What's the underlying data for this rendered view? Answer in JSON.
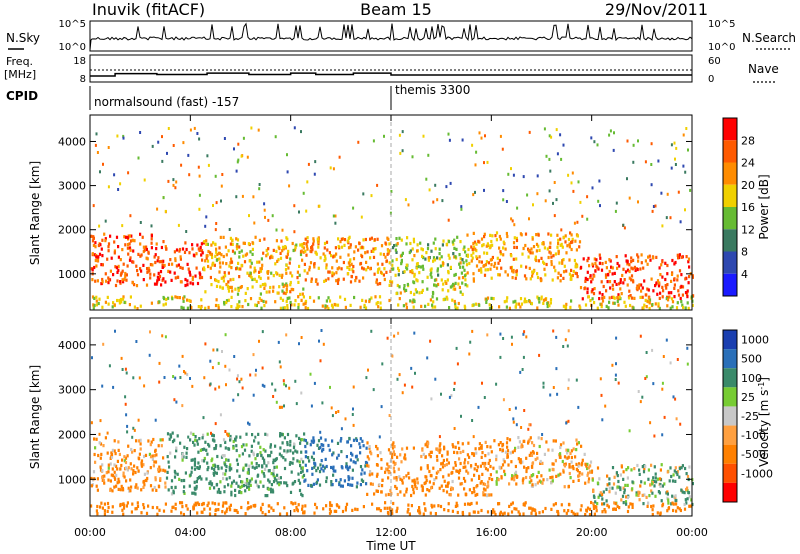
{
  "header": {
    "station": "Inuvik  (fitACF)",
    "beam": "Beam 15",
    "date": "29/Nov/2011"
  },
  "noise_panel": {
    "left_label": "N.Sky",
    "right_label": "N.Search",
    "left_ticks": [
      "10^5",
      "10^0"
    ],
    "right_ticks": [
      "10^5",
      "10^0"
    ]
  },
  "freq_panel": {
    "left_label_1": "Freq.",
    "left_label_2": "[MHz]",
    "right_label": "Nave",
    "left_ticks": [
      "18",
      "8"
    ],
    "right_ticks": [
      "60",
      "0"
    ]
  },
  "cpid_panel": {
    "label": "CPID",
    "segments": [
      "normalsound (fast) -157",
      "themis 3300"
    ]
  },
  "xaxis": {
    "label": "Time UT",
    "ticks": [
      "00:00",
      "04:00",
      "08:00",
      "12:00",
      "16:00",
      "20:00",
      "00:00"
    ]
  },
  "yaxis": {
    "label": "Slant Range [km]",
    "ticks": [
      "1000",
      "2000",
      "3000",
      "4000"
    ]
  },
  "power_colorbar": {
    "label": "Power [dB]",
    "ticks": [
      "4",
      "8",
      "12",
      "16",
      "20",
      "24",
      "28"
    ],
    "colors": [
      "#1a1aff",
      "#2e48b0",
      "#3a7a60",
      "#66bb33",
      "#f0d000",
      "#ff8c00",
      "#ff5a00",
      "#ff0000"
    ]
  },
  "velocity_colorbar": {
    "label": "Velocity [m s^-1]",
    "ticks": [
      "1000",
      "500",
      "100",
      "25",
      "-25",
      "-100",
      "-500",
      "-1000"
    ],
    "colors": [
      "#1a3fb0",
      "#2a6fb8",
      "#3a8a6a",
      "#77cc33",
      "#c8c8c8",
      "#ffa040",
      "#ff8000",
      "#ff5000",
      "#ff0000"
    ]
  },
  "chart_data": [
    {
      "type": "line",
      "title": "N.Sky / N.Search",
      "ylabel": "N.Sky",
      "x_range": [
        "00:00",
        "24:00"
      ],
      "series": [
        {
          "name": "N.Sky"
        },
        {
          "name": "N.Search"
        }
      ]
    },
    {
      "type": "line",
      "title": "Freq. / Nave",
      "ylabel": "Freq. [MHz]",
      "ylim": [
        8,
        18
      ],
      "series": [
        {
          "name": "Freq.",
          "x": [
            "00:00",
            "01:00",
            "02:40",
            "04:40",
            "06:20",
            "08:00",
            "09:00",
            "10:30",
            "12:00",
            "24:00"
          ],
          "values": [
            10.2,
            11.1,
            10.8,
            11.3,
            10.8,
            11.3,
            10.8,
            11.3,
            10.6,
            10.6
          ]
        }
      ]
    },
    {
      "type": "table",
      "title": "CPID",
      "x": [
        "00:00",
        "12:00"
      ],
      "values": [
        "normalsound (fast) -157",
        "themis 3300"
      ]
    },
    {
      "type": "heatmap",
      "title": "Power [dB]",
      "xlabel": "Time UT",
      "ylabel": "Slant Range [km]",
      "xlim": [
        "00:00",
        "24:00"
      ],
      "ylim": [
        180,
        4600
      ],
      "colorbar": {
        "label": "Power [dB]",
        "ticks": [
          4,
          8,
          12,
          16,
          20,
          24,
          28
        ]
      },
      "regions": [
        {
          "t": [
            0.0,
            2.5
          ],
          "r": [
            700,
            1900
          ],
          "power": 26
        },
        {
          "t": [
            2.5,
            4.5
          ],
          "r": [
            700,
            1700
          ],
          "power": 28
        },
        {
          "t": [
            4.5,
            8.5
          ],
          "r": [
            500,
            1800
          ],
          "power": 20
        },
        {
          "t": [
            8.5,
            12.0
          ],
          "r": [
            700,
            1800
          ],
          "power": 22
        },
        {
          "t": [
            12.0,
            15.0
          ],
          "r": [
            500,
            1800
          ],
          "power": 16
        },
        {
          "t": [
            15.0,
            19.5
          ],
          "r": [
            800,
            1900
          ],
          "power": 22
        },
        {
          "t": [
            19.5,
            24.0
          ],
          "r": [
            400,
            1400
          ],
          "power": 27
        },
        {
          "t": [
            0.0,
            24.0
          ],
          "r": [
            180,
            450
          ],
          "power": 18
        }
      ]
    },
    {
      "type": "heatmap",
      "title": "Velocity",
      "xlabel": "Time UT",
      "ylabel": "Slant Range [km]",
      "xlim": [
        "00:00",
        "24:00"
      ],
      "ylim": [
        180,
        4600
      ],
      "colorbar": {
        "label": "Velocity [m s^-1]",
        "ticks": [
          1000,
          500,
          100,
          25,
          -25,
          -100,
          -500,
          -1000
        ]
      },
      "regions": [
        {
          "t": [
            0.0,
            3.0
          ],
          "r": [
            700,
            1900
          ],
          "velocity": -150
        },
        {
          "t": [
            3.0,
            8.5
          ],
          "r": [
            600,
            2000
          ],
          "velocity": 200
        },
        {
          "t": [
            8.5,
            11.0
          ],
          "r": [
            800,
            1900
          ],
          "velocity": 600
        },
        {
          "t": [
            11.0,
            16.0
          ],
          "r": [
            600,
            1800
          ],
          "velocity": -200
        },
        {
          "t": [
            16.0,
            20.0
          ],
          "r": [
            800,
            1900
          ],
          "velocity": -120
        },
        {
          "t": [
            20.0,
            24.0
          ],
          "r": [
            400,
            1300
          ],
          "velocity": 80
        },
        {
          "t": [
            0.0,
            24.0
          ],
          "r": [
            180,
            450
          ],
          "velocity": -300
        }
      ]
    }
  ]
}
